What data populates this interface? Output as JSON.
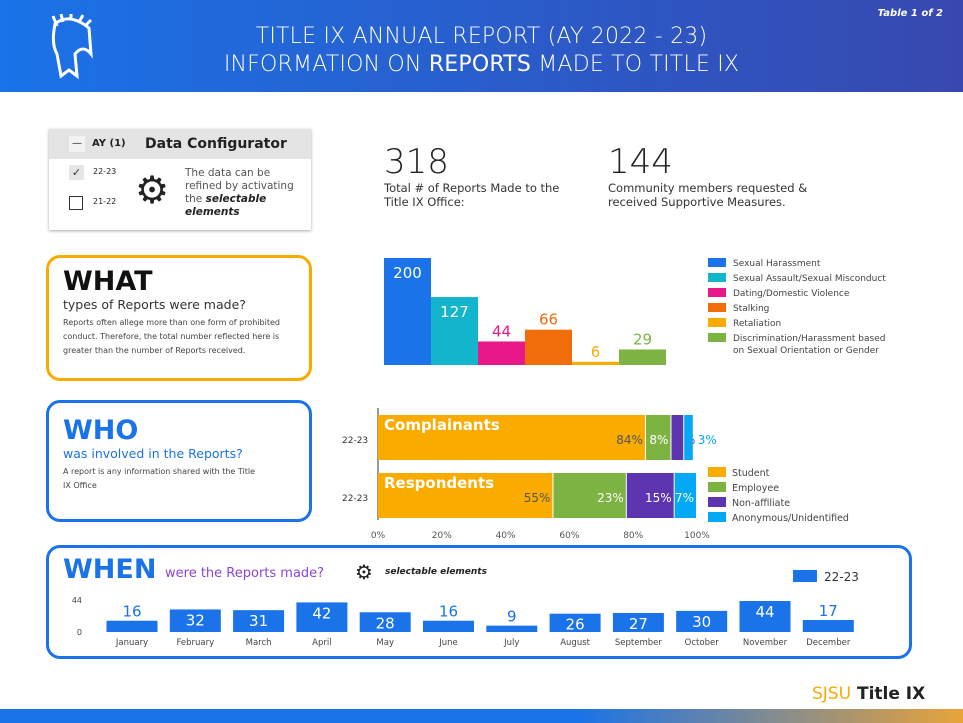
{
  "header": {
    "title_line1": "TITLE IX ANNUAL REPORT (AY 2022 - 23)",
    "title_line2_pre": "INFORMATION ON ",
    "title_line2_bold": "REPORTS",
    "title_line2_post": " MADE TO TITLE IX",
    "table_label": "Table 1 of 2"
  },
  "configurator": {
    "collapse": "—",
    "ay_label": "AY (1)",
    "title": "Data Configurator",
    "options": [
      {
        "label": "22-23",
        "checked": true
      },
      {
        "label": "21-22",
        "checked": false
      }
    ],
    "note_pre": "The data can be refined by activating the ",
    "note_bold": "selectable elements"
  },
  "kpis": [
    {
      "value": "318",
      "label": "Total # of Reports Made to the Title IX Office:"
    },
    {
      "value": "144",
      "label": "Community members requested & received Supportive Measures."
    }
  ],
  "what": {
    "heading": "WHAT",
    "sub": "types of Reports were made?",
    "note": "Reports often allege more than one form of prohibited conduct. Therefore, the total number reflected here is greater than the number of Reports received."
  },
  "who": {
    "heading": "WHO",
    "sub": "was involved in the Reports?",
    "note": "A report is any information shared with the Title IX Office"
  },
  "when": {
    "heading": "WHEN",
    "sub": "were the Reports made?",
    "selectable": "selectable elements"
  },
  "chart_data": [
    {
      "type": "bar",
      "categories": [
        "Sexual Harassment",
        "Sexual Assault/Sexual Misconduct",
        "Dating/Domestic Violence",
        "Stalking",
        "Retaliation",
        "Discrimination/Harassment based on Sexual Orientation or Gender"
      ],
      "values": [
        200,
        127,
        44,
        66,
        6,
        29
      ],
      "colors": [
        "#1a73e8",
        "#12b5cb",
        "#e8178a",
        "#f06d0a",
        "#f9ab00",
        "#7cb342"
      ],
      "legend": "right"
    },
    {
      "type": "bar",
      "orientation": "horizontal",
      "stacked": "percent",
      "categories": [
        "22-23",
        "22-23"
      ],
      "row_titles": [
        "Complainants",
        "Respondents"
      ],
      "series": [
        {
          "name": "Student",
          "values": [
            84,
            55
          ],
          "color": "#f9ab00"
        },
        {
          "name": "Employee",
          "values": [
            8,
            23
          ],
          "color": "#7cb342"
        },
        {
          "name": "Non-affiliate",
          "values": [
            4,
            15
          ],
          "color": "#5e35b1"
        },
        {
          "name": "Anonymous/Unidentified",
          "values": [
            3,
            7
          ],
          "color": "#03a9f4"
        }
      ],
      "xticks": [
        "0%",
        "20%",
        "40%",
        "60%",
        "80%",
        "100%"
      ],
      "legend": "right"
    },
    {
      "type": "bar",
      "categories": [
        "January",
        "February",
        "March",
        "April",
        "May",
        "June",
        "July",
        "August",
        "September",
        "October",
        "November",
        "December"
      ],
      "series": [
        {
          "name": "22-23",
          "values": [
            16,
            32,
            31,
            42,
            28,
            16,
            9,
            26,
            27,
            30,
            44,
            17
          ],
          "color": "#1a73e8"
        }
      ],
      "yticks": [
        "0",
        "44"
      ],
      "ylim": [
        0,
        44
      ],
      "legend": "top-right"
    }
  ],
  "footer": {
    "brand": "SJSU",
    "brand2": "Title IX"
  }
}
